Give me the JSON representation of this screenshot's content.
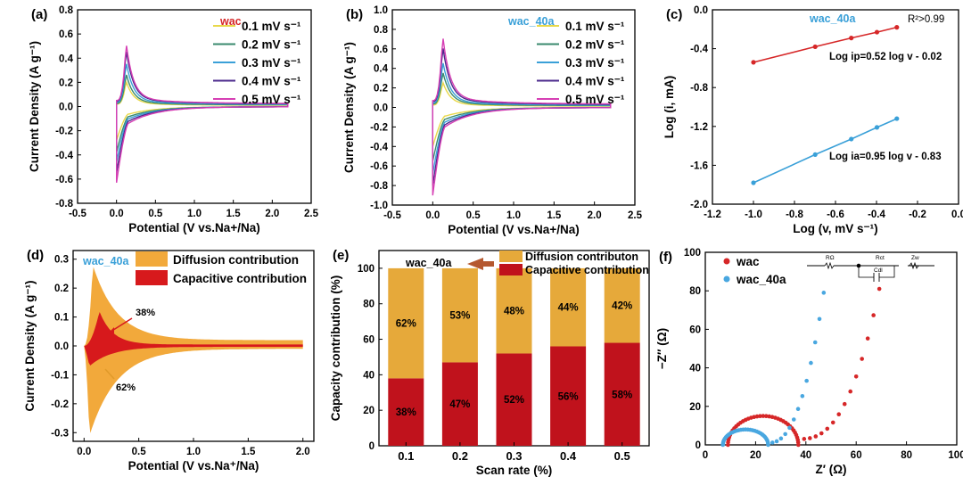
{
  "chart_data": [
    {
      "panel": "(a)",
      "type": "line",
      "title": "wac",
      "title_color": "#d62728",
      "xlabel": "Potential (V vs.Na+/Na)",
      "ylabel": "Current Density (A g⁻¹)",
      "xlim": [
        -0.5,
        2.5
      ],
      "ylim": [
        -0.8,
        0.8
      ],
      "xticks": [
        "-0.5",
        "0.0",
        "0.5",
        "1.0",
        "1.5",
        "2.0",
        "2.5"
      ],
      "yticks": [
        "-0.8",
        "-0.6",
        "-0.4",
        "-0.2",
        "0.0",
        "0.2",
        "0.4",
        "0.6",
        "0.8"
      ],
      "legend_position": "top-right",
      "series": [
        {
          "name": "0.1 mV s⁻¹",
          "color": "#e8d84a",
          "peak": 0.2,
          "min": -0.28
        },
        {
          "name": "0.2 mV s⁻¹",
          "color": "#3a8a6e",
          "peak": 0.26,
          "min": -0.38
        },
        {
          "name": "0.3 mV s⁻¹",
          "color": "#3aa0d8",
          "peak": 0.35,
          "min": -0.46
        },
        {
          "name": "0.4 mV s⁻¹",
          "color": "#4b2a8c",
          "peak": 0.45,
          "min": -0.55
        },
        {
          "name": "0.5 mV s⁻¹",
          "color": "#d63fb4",
          "peak": 0.5,
          "min": -0.63
        }
      ]
    },
    {
      "panel": "(b)",
      "type": "line",
      "title": "wac_40a",
      "title_color": "#3aa0d8",
      "xlabel": "Potential (V vs.Na+/Na)",
      "ylabel": "Current Density (A g⁻¹)",
      "xlim": [
        -0.5,
        2.5
      ],
      "ylim": [
        -1.0,
        1.0
      ],
      "xticks": [
        "-0.5",
        "0.0",
        "0.5",
        "1.0",
        "1.5",
        "2.0",
        "2.5"
      ],
      "yticks": [
        "-1.0",
        "-0.8",
        "-0.6",
        "-0.4",
        "-0.2",
        "0.0",
        "0.2",
        "0.4",
        "0.6",
        "0.8",
        "1.0"
      ],
      "legend_position": "top-right",
      "series": [
        {
          "name": "0.1 mV s⁻¹",
          "color": "#e8d84a",
          "peak": 0.25,
          "min": -0.4
        },
        {
          "name": "0.2 mV s⁻¹",
          "color": "#3a8a6e",
          "peak": 0.35,
          "min": -0.55
        },
        {
          "name": "0.3 mV s⁻¹",
          "color": "#3aa0d8",
          "peak": 0.45,
          "min": -0.68
        },
        {
          "name": "0.4 mV s⁻¹",
          "color": "#4b2a8c",
          "peak": 0.6,
          "min": -0.8
        },
        {
          "name": "0.5 mV s⁻¹",
          "color": "#d63fb4",
          "peak": 0.7,
          "min": -0.9
        }
      ]
    },
    {
      "panel": "(c)",
      "type": "scatter",
      "title": "wac_40a",
      "title_color": "#3aa0d8",
      "xlabel": "Log (v, mV s⁻¹)",
      "ylabel": "Log (i, mA)",
      "xlim": [
        -1.2,
        0.0
      ],
      "ylim": [
        -2.0,
        0.0
      ],
      "xticks": [
        "-1.2",
        "-1.0",
        "-0.8",
        "-0.6",
        "-0.4",
        "-0.2",
        "0.0"
      ],
      "yticks": [
        "-2.0",
        "-1.6",
        "-1.2",
        "-0.8",
        "-0.4",
        "0.0"
      ],
      "r2_label": "R²>0.99",
      "series": [
        {
          "name": "ip",
          "color": "#d62728",
          "x": [
            -1.0,
            -0.699,
            -0.523,
            -0.398,
            -0.301
          ],
          "y": [
            -0.54,
            -0.38,
            -0.29,
            -0.23,
            -0.18
          ],
          "equation": "Log ip=0.52 log v - 0.02"
        },
        {
          "name": "ia",
          "color": "#3aa0d8",
          "x": [
            -1.0,
            -0.699,
            -0.523,
            -0.398,
            -0.301
          ],
          "y": [
            -1.78,
            -1.49,
            -1.33,
            -1.21,
            -1.12
          ],
          "equation": "Log ia=0.95 log v - 0.83"
        }
      ]
    },
    {
      "panel": "(d)",
      "type": "area",
      "title": "wac_40a",
      "title_color": "#3aa0d8",
      "xlabel": "Potential (V vs.Na⁺/Na)",
      "ylabel": "Current Density (A g⁻¹)",
      "xlim": [
        -0.1,
        2.1
      ],
      "ylim": [
        -0.33,
        0.33
      ],
      "xticks": [
        "0.0",
        "0.5",
        "1.0",
        "1.5",
        "2.0"
      ],
      "yticks": [
        "-0.3",
        "-0.2",
        "-0.1",
        "0.0",
        "0.1",
        "0.2",
        "0.3"
      ],
      "series": [
        {
          "name": "Diffusion contribution",
          "color": "#f2a93b"
        },
        {
          "name": "Capacitive contribution",
          "color": "#d7191c"
        }
      ],
      "annotations": [
        "38%",
        "62%"
      ]
    },
    {
      "panel": "(e)",
      "type": "bar",
      "title": "wac_40a",
      "xlabel": "Scan rate (%)",
      "ylabel": "Capacity contribution (%)",
      "ylim": [
        0,
        110
      ],
      "yticks": [
        "0",
        "20",
        "40",
        "60",
        "80",
        "100"
      ],
      "categories": [
        "0.1",
        "0.2",
        "0.3",
        "0.4",
        "0.5"
      ],
      "series": [
        {
          "name": "Capacitive contribution",
          "color": "#c0121c",
          "values": [
            38,
            47,
            52,
            56,
            58
          ],
          "labels": [
            "38%",
            "47%",
            "52%",
            "56%",
            "58%"
          ]
        },
        {
          "name": "Diffusion contributon",
          "color": "#e6a93a",
          "values": [
            62,
            53,
            48,
            44,
            42
          ],
          "labels": [
            "62%",
            "53%",
            "48%",
            "44%",
            "42%"
          ]
        }
      ]
    },
    {
      "panel": "(f)",
      "type": "scatter",
      "xlabel": "Z′ (Ω)",
      "ylabel": "−Z″ (Ω)",
      "xlim": [
        0,
        100
      ],
      "ylim": [
        0,
        100
      ],
      "xticks": [
        "0",
        "20",
        "40",
        "60",
        "80",
        "100"
      ],
      "yticks": [
        "0",
        "20",
        "40",
        "60",
        "80",
        "100"
      ],
      "circuit_labels": [
        "RΩ",
        "Rct",
        "Cdl",
        "Zw"
      ],
      "series": [
        {
          "name": "wac",
          "color": "#d62728"
        },
        {
          "name": "wac_40a",
          "color": "#49a7e0"
        }
      ]
    }
  ]
}
